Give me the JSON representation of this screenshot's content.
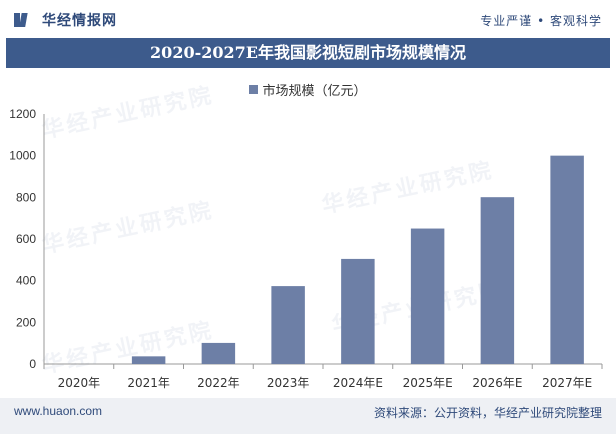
{
  "header": {
    "logo_text": "华经情报网",
    "slogan": "专业严谨 • 客观科学"
  },
  "footer": {
    "url": "www.huaon.com",
    "source": "资料来源：公开资料，华经产业研究院整理"
  },
  "watermark_text": "华经产业研究院",
  "colors": {
    "bar": "#6d7fa6",
    "title_bg": "#3d5b8c"
  },
  "chart_data": {
    "type": "bar",
    "title": "2020-2027E年我国影视短剧市场规模情况",
    "legend": [
      "市场规模（亿元）"
    ],
    "categories": [
      "2020年",
      "2021年",
      "2022年",
      "2023年",
      "2024年E",
      "2025年E",
      "2026年E",
      "2027年E"
    ],
    "values": [
      0.1,
      36.8,
      101.2,
      373.9,
      504.4,
      650.2,
      800.7,
      1000.1
    ],
    "yticks": [
      0,
      200,
      400,
      600,
      800,
      1000,
      1200
    ],
    "ylim": [
      0,
      1200
    ],
    "xlabel": "",
    "ylabel": ""
  }
}
